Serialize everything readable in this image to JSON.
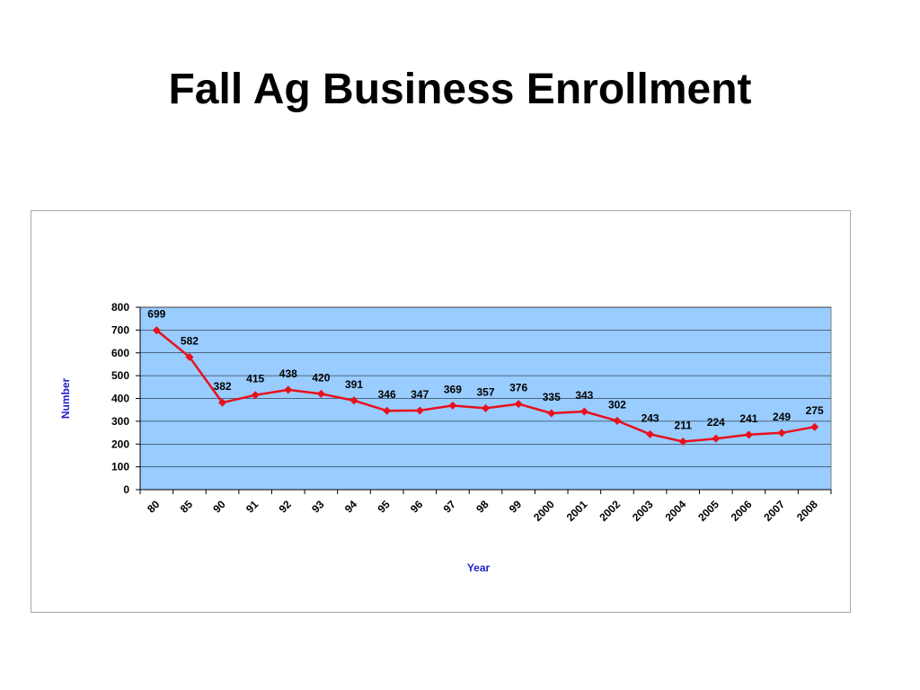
{
  "slide": {
    "title": "Fall Ag Business Enrollment"
  },
  "chart_data": {
    "type": "line",
    "title": "",
    "xlabel": "Year",
    "ylabel": "Number",
    "categories": [
      "80",
      "85",
      "90",
      "91",
      "92",
      "93",
      "94",
      "95",
      "96",
      "97",
      "98",
      "99",
      "2000",
      "2001",
      "2002",
      "2003",
      "2004",
      "2005",
      "2006",
      "2007",
      "2008"
    ],
    "series": [
      {
        "values": [
          699,
          582,
          382,
          415,
          438,
          420,
          391,
          346,
          347,
          369,
          357,
          376,
          335,
          343,
          302,
          243,
          211,
          224,
          241,
          249,
          275
        ]
      }
    ],
    "ylim": [
      0,
      800
    ],
    "yticks": [
      0,
      100,
      200,
      300,
      400,
      500,
      600,
      700,
      800
    ],
    "grid": true,
    "legend": "none",
    "colors": {
      "plot_background": "#99ccff",
      "line": "#e8101c",
      "marker": "#e8101c",
      "gridline": "#000000",
      "axis_title": "#1f1fc8"
    }
  }
}
